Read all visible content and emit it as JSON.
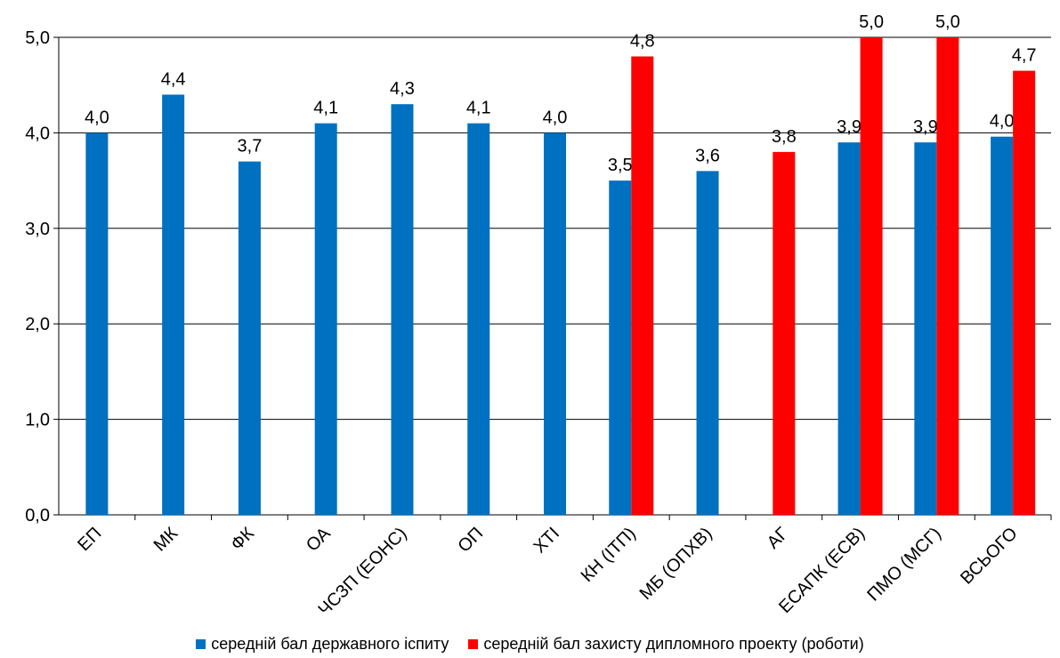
{
  "chart_data": {
    "type": "bar",
    "title": "",
    "xlabel": "",
    "ylabel": "",
    "ylim": [
      0,
      5
    ],
    "yticks": [
      "0,0",
      "1,0",
      "2,0",
      "3,0",
      "4,0",
      "5,0"
    ],
    "grid": true,
    "legend_position": "bottom",
    "categories": [
      "ЕП",
      "МК",
      "ФК",
      "ОА",
      "ЧСЗП (ЕОНС)",
      "ОП",
      "ХТІ",
      "КН (ІТП)",
      "МБ (ОПХВ)",
      "АГ",
      "ЕСАПК (ЕСВ)",
      "ПМО (МСГ)",
      "ВСЬОГО"
    ],
    "series": [
      {
        "name": "середній бал державного іспиту",
        "color": "#0070C0",
        "values": [
          4.0,
          4.4,
          3.7,
          4.1,
          4.3,
          4.1,
          4.0,
          3.5,
          3.6,
          null,
          3.9,
          3.9,
          3.96
        ],
        "labels": [
          "4,0",
          "4,4",
          "3,7",
          "4,1",
          "4,3",
          "4,1",
          "4,0",
          "3,5",
          "3,6",
          null,
          "3,9",
          "3,9",
          "4,0"
        ]
      },
      {
        "name": "середній бал захисту дипломного проекту (роботи)",
        "color": "#FF0000",
        "values": [
          null,
          null,
          null,
          null,
          null,
          null,
          null,
          4.8,
          null,
          3.8,
          5.0,
          5.0,
          4.65
        ],
        "labels": [
          null,
          null,
          null,
          null,
          null,
          null,
          null,
          "4,8",
          null,
          "3,8",
          "5,0",
          "5,0",
          "4,7"
        ]
      }
    ]
  }
}
